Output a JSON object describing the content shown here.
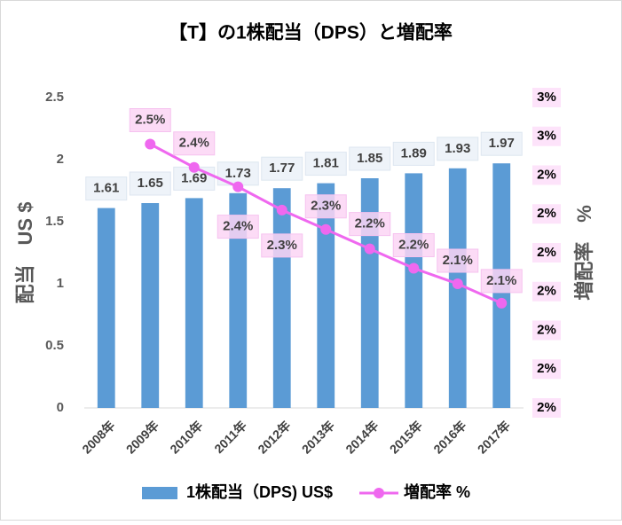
{
  "chart_data": {
    "type": "bar",
    "title": "【T】の1株配当（DPS）と増配率",
    "ylabel": "配当　US $",
    "y2label": "増配率　%",
    "categories": [
      "2008年",
      "2009年",
      "2010年",
      "2011年",
      "2012年",
      "2013年",
      "2014年",
      "2015年",
      "2016年",
      "2017年"
    ],
    "series": [
      {
        "name": "1株配当（DPS) US$",
        "type": "bar",
        "color": "#5b9bd5",
        "values": [
          1.61,
          1.65,
          1.69,
          1.73,
          1.77,
          1.81,
          1.85,
          1.89,
          1.93,
          1.97
        ]
      },
      {
        "name": "増配率 %",
        "type": "line",
        "axis": "y2",
        "color": "#ef68ef",
        "values": [
          null,
          2.48,
          2.42,
          2.37,
          2.31,
          2.26,
          2.21,
          2.16,
          2.12,
          2.07
        ],
        "value_labels": [
          null,
          "2.5%",
          "2.4%",
          "2.4%",
          "2.3%",
          "2.3%",
          "2.2%",
          "2.2%",
          "2.1%",
          "2.1%"
        ]
      }
    ],
    "ylim": [
      0,
      2.5
    ],
    "yticks": [
      0,
      0.5,
      1,
      1.5,
      2,
      2.5
    ],
    "y2lim": [
      1.8,
      2.6
    ],
    "y2ticks": [
      {
        "value": 1.8,
        "label": "2%"
      },
      {
        "value": 1.9,
        "label": "2%"
      },
      {
        "value": 2.0,
        "label": "2%"
      },
      {
        "value": 2.1,
        "label": "2%"
      },
      {
        "value": 2.2,
        "label": "2%"
      },
      {
        "value": 2.3,
        "label": "2%"
      },
      {
        "value": 2.4,
        "label": "2%"
      },
      {
        "value": 2.5,
        "label": "3%"
      },
      {
        "value": 2.6,
        "label": "3%"
      }
    ],
    "legend": "bottom"
  }
}
